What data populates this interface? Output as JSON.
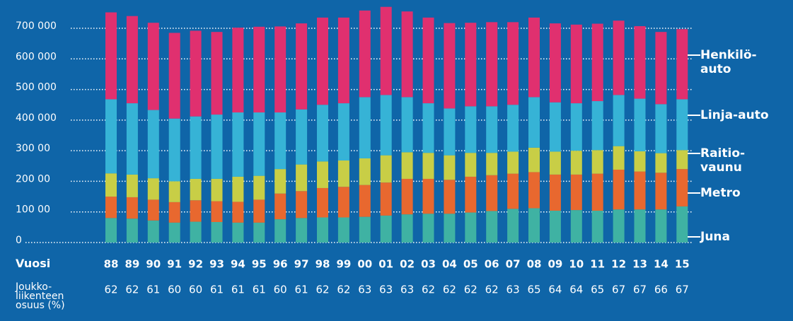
{
  "chart_data": {
    "type": "bar",
    "stacked": true,
    "x_label": "Vuosi",
    "categories": [
      "88",
      "89",
      "90",
      "91",
      "92",
      "93",
      "94",
      "95",
      "96",
      "97",
      "98",
      "99",
      "00",
      "01",
      "02",
      "03",
      "04",
      "05",
      "06",
      "07",
      "08",
      "09",
      "10",
      "11",
      "12",
      "13",
      "14",
      "15"
    ],
    "series": [
      {
        "name": "Juna",
        "color": "#3fb2a3",
        "values": [
          80000,
          78000,
          72000,
          65000,
          68000,
          67000,
          65000,
          65000,
          76000,
          80000,
          82000,
          82000,
          84000,
          88000,
          92000,
          94000,
          94000,
          98000,
          103000,
          110000,
          112000,
          104000,
          106000,
          104000,
          108000,
          108000,
          108000,
          118000
        ]
      },
      {
        "name": "Metro",
        "color": "#e8682f",
        "values": [
          70000,
          70000,
          68000,
          67000,
          70000,
          68000,
          68000,
          75000,
          84000,
          88000,
          96000,
          100000,
          104000,
          108000,
          116000,
          114000,
          111000,
          117000,
          117000,
          115000,
          118000,
          118000,
          116000,
          121000,
          130000,
          124000,
          120000,
          122000
        ]
      },
      {
        "name": "Raitio-\nvaunu",
        "color": "#c8ce46",
        "values": [
          76000,
          74000,
          70000,
          68000,
          70000,
          73000,
          82000,
          78000,
          80000,
          87000,
          87000,
          86000,
          87000,
          89000,
          87000,
          85000,
          80000,
          78000,
          73000,
          72000,
          80000,
          75000,
          78000,
          77000,
          77000,
          66000,
          64000,
          62000
        ]
      },
      {
        "name": "Linja-auto",
        "color": "#36b3d6",
        "values": [
          242000,
          233000,
          223000,
          205000,
          204000,
          210000,
          210000,
          207000,
          185000,
          180000,
          185000,
          187000,
          200000,
          197000,
          180000,
          162000,
          153000,
          152000,
          152000,
          153000,
          165000,
          161000,
          155000,
          160000,
          167000,
          172000,
          160000,
          166000
        ]
      },
      {
        "name": "Henkilö-\nauto",
        "color": "#e0306f",
        "values": [
          284000,
          285000,
          285000,
          280000,
          280000,
          270000,
          277000,
          280000,
          281000,
          281000,
          285000,
          280000,
          283000,
          288000,
          280000,
          280000,
          279000,
          273000,
          275000,
          270000,
          260000,
          258000,
          257000,
          253000,
          243000,
          237000,
          236000,
          229000
        ]
      }
    ],
    "ylim": [
      0,
      720000
    ],
    "yticks": [
      {
        "value": 0,
        "label": "0"
      },
      {
        "value": 100000,
        "label": "100 00"
      },
      {
        "value": 200000,
        "label": "200 00"
      },
      {
        "value": 300000,
        "label": "300 00"
      },
      {
        "value": 400000,
        "label": "400 000"
      },
      {
        "value": 500000,
        "label": "500 000"
      },
      {
        "value": 600000,
        "label": "600 000"
      },
      {
        "value": 700000,
        "label": "700 000"
      }
    ],
    "grid": true,
    "share": {
      "label": "Joukko-\nliikenteen\nosuus (%)",
      "values": [
        62,
        62,
        61,
        60,
        60,
        61,
        61,
        61,
        60,
        61,
        62,
        62,
        63,
        63,
        63,
        62,
        62,
        62,
        62,
        63,
        65,
        64,
        64,
        65,
        67,
        67,
        66,
        67
      ]
    }
  }
}
